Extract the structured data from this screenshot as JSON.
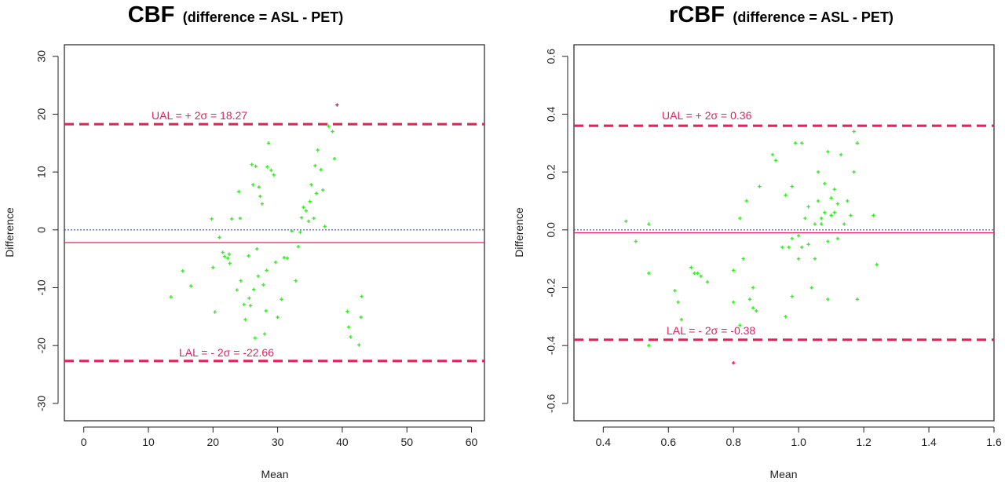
{
  "chart_data": [
    {
      "type": "scatter",
      "title": "CBF",
      "subtitle": "(difference = ASL - PET)",
      "xlabel": "Mean",
      "ylabel": "Difference",
      "xlim": [
        -3,
        62
      ],
      "ylim": [
        -33,
        32
      ],
      "xticks": [
        0,
        10,
        20,
        30,
        40,
        50,
        60
      ],
      "yticks": [
        -30,
        -20,
        -10,
        0,
        10,
        20,
        30
      ],
      "xtick_labels": [
        "0",
        "10",
        "20",
        "30",
        "40",
        "50",
        "60"
      ],
      "ytick_labels": [
        "-30",
        "-20",
        "-10",
        "0",
        "10",
        "20",
        "30"
      ],
      "grid": false,
      "point_color": "#33ee22",
      "outlier_color": "#e8205a",
      "line_color": "#e8205a",
      "zero_line_color": "#333399",
      "reference_lines": [
        {
          "kind": "upper-limit",
          "y": 18.27,
          "style": "dashed",
          "label": "UAL = + 2σ   =  18.27"
        },
        {
          "kind": "mean-bias",
          "y": -2.2,
          "style": "solid"
        },
        {
          "kind": "zero",
          "y": 0,
          "style": "dotted"
        },
        {
          "kind": "lower-limit",
          "y": -22.66,
          "style": "dashed",
          "label": "LAL = - 2σ   =  -22.66"
        }
      ],
      "x": [
        13.5,
        15.3,
        16.6,
        19.8,
        20.3,
        20.0,
        21.0,
        21.5,
        21.8,
        22.3,
        22.6,
        22.9,
        22.5,
        23.7,
        24.0,
        24.2,
        24.3,
        24.8,
        25.0,
        25.5,
        25.6,
        25.8,
        26.0,
        26.2,
        26.3,
        26.5,
        26.6,
        26.8,
        27.0,
        27.1,
        27.3,
        27.6,
        27.8,
        28.0,
        28.2,
        28.3,
        28.4,
        28.6,
        29.0,
        29.4,
        29.7,
        30.0,
        30.6,
        31.0,
        31.5,
        32.2,
        32.8,
        33.2,
        33.5,
        33.7,
        34.0,
        34.4,
        34.8,
        35.0,
        35.2,
        35.6,
        35.8,
        36.0,
        36.2,
        36.7,
        37.0,
        37.3,
        37.9,
        38.5,
        38.8,
        40.8,
        41.0,
        41.3,
        42.6,
        42.9,
        43.0,
        39.2
      ],
      "y": [
        -11.6,
        -7.1,
        -9.7,
        1.9,
        -14.2,
        -6.5,
        -1.3,
        -3.9,
        -4.6,
        -4.9,
        -5.8,
        1.9,
        -4.2,
        -10.4,
        6.6,
        2.0,
        -8.8,
        -12.9,
        -15.5,
        -4.5,
        -11.8,
        -13.1,
        11.3,
        7.8,
        -10.3,
        -18.7,
        11.0,
        -3.3,
        -8.0,
        7.4,
        5.8,
        4.5,
        -9.5,
        -18.0,
        -14.0,
        -7.0,
        10.9,
        15.0,
        10.3,
        9.5,
        -5.6,
        -15.1,
        -12.0,
        -4.8,
        -4.9,
        -0.2,
        -8.8,
        -2.9,
        -0.4,
        2.1,
        3.9,
        3.3,
        1.5,
        4.9,
        7.8,
        2.0,
        11.1,
        6.3,
        13.8,
        10.4,
        6.9,
        0.6,
        17.9,
        17.0,
        12.3,
        -14.1,
        -16.8,
        -18.5,
        -19.9,
        -15.1,
        -11.5,
        21.6
      ],
      "outlier_index": [
        71
      ]
    },
    {
      "type": "scatter",
      "title": "rCBF",
      "subtitle": "(difference = ASL - PET)",
      "xlabel": "Mean",
      "ylabel": "Difference",
      "xlim": [
        0.31,
        1.6
      ],
      "ylim": [
        -0.66,
        0.64
      ],
      "xticks": [
        0.4,
        0.6,
        0.8,
        1.0,
        1.2,
        1.4,
        1.6
      ],
      "yticks": [
        -0.6,
        -0.4,
        -0.2,
        0.0,
        0.2,
        0.4,
        0.6
      ],
      "xtick_labels": [
        "0.4",
        "0.6",
        "0.8",
        "1.0",
        "1.2",
        "1.4",
        "1.6"
      ],
      "ytick_labels": [
        "-0.6",
        "-0.4",
        "-0.2",
        "0.0",
        "0.2",
        "0.4",
        "0.6"
      ],
      "grid": false,
      "point_color": "#33ee22",
      "outlier_color": "#e8205a",
      "line_color": "#e8205a",
      "zero_line_color": "#333399",
      "reference_lines": [
        {
          "kind": "upper-limit",
          "y": 0.36,
          "style": "dashed",
          "label": "UAL = + 2σ   =  0.36"
        },
        {
          "kind": "mean-bias",
          "y": -0.01,
          "style": "solid"
        },
        {
          "kind": "zero",
          "y": 0,
          "style": "dotted"
        },
        {
          "kind": "lower-limit",
          "y": -0.38,
          "style": "dashed",
          "label": "LAL = - 2σ   =  -0.38"
        }
      ],
      "x": [
        0.47,
        0.5,
        0.54,
        0.54,
        0.54,
        0.62,
        0.63,
        0.64,
        0.67,
        0.68,
        0.69,
        0.7,
        0.72,
        0.8,
        0.8,
        0.82,
        0.82,
        0.83,
        0.84,
        0.85,
        0.86,
        0.87,
        0.88,
        0.92,
        0.93,
        0.95,
        0.96,
        0.97,
        0.98,
        0.98,
        0.99,
        1.0,
        1.01,
        1.01,
        1.02,
        1.03,
        1.03,
        1.04,
        1.05,
        1.05,
        1.06,
        1.06,
        1.07,
        1.07,
        1.08,
        1.08,
        1.09,
        1.09,
        1.09,
        1.1,
        1.1,
        1.11,
        1.11,
        1.12,
        1.12,
        1.13,
        1.14,
        1.15,
        1.16,
        1.17,
        1.17,
        1.18,
        1.18,
        1.23,
        1.24,
        0.8,
        0.86,
        0.96,
        1.0,
        0.98
      ],
      "y": [
        0.03,
        -0.04,
        0.02,
        -0.15,
        -0.4,
        -0.21,
        -0.25,
        -0.31,
        -0.13,
        -0.15,
        -0.15,
        -0.16,
        -0.18,
        -0.14,
        -0.25,
        -0.33,
        0.04,
        -0.1,
        0.1,
        -0.24,
        -0.27,
        -0.28,
        0.15,
        0.26,
        0.24,
        -0.06,
        0.12,
        -0.06,
        -0.03,
        0.15,
        0.3,
        -0.02,
        0.3,
        -0.06,
        0.04,
        0.08,
        -0.05,
        -0.2,
        0.02,
        -0.1,
        0.2,
        0.1,
        0.04,
        0.02,
        0.06,
        0.16,
        0.27,
        -0.24,
        -0.04,
        0.05,
        0.11,
        0.14,
        0.06,
        0.09,
        -0.03,
        0.26,
        0.02,
        0.1,
        0.05,
        0.2,
        0.34,
        -0.24,
        0.3,
        0.05,
        -0.12,
        -0.46,
        -0.2,
        -0.3,
        -0.1,
        -0.23
      ],
      "outlier_index": [
        65
      ]
    }
  ]
}
